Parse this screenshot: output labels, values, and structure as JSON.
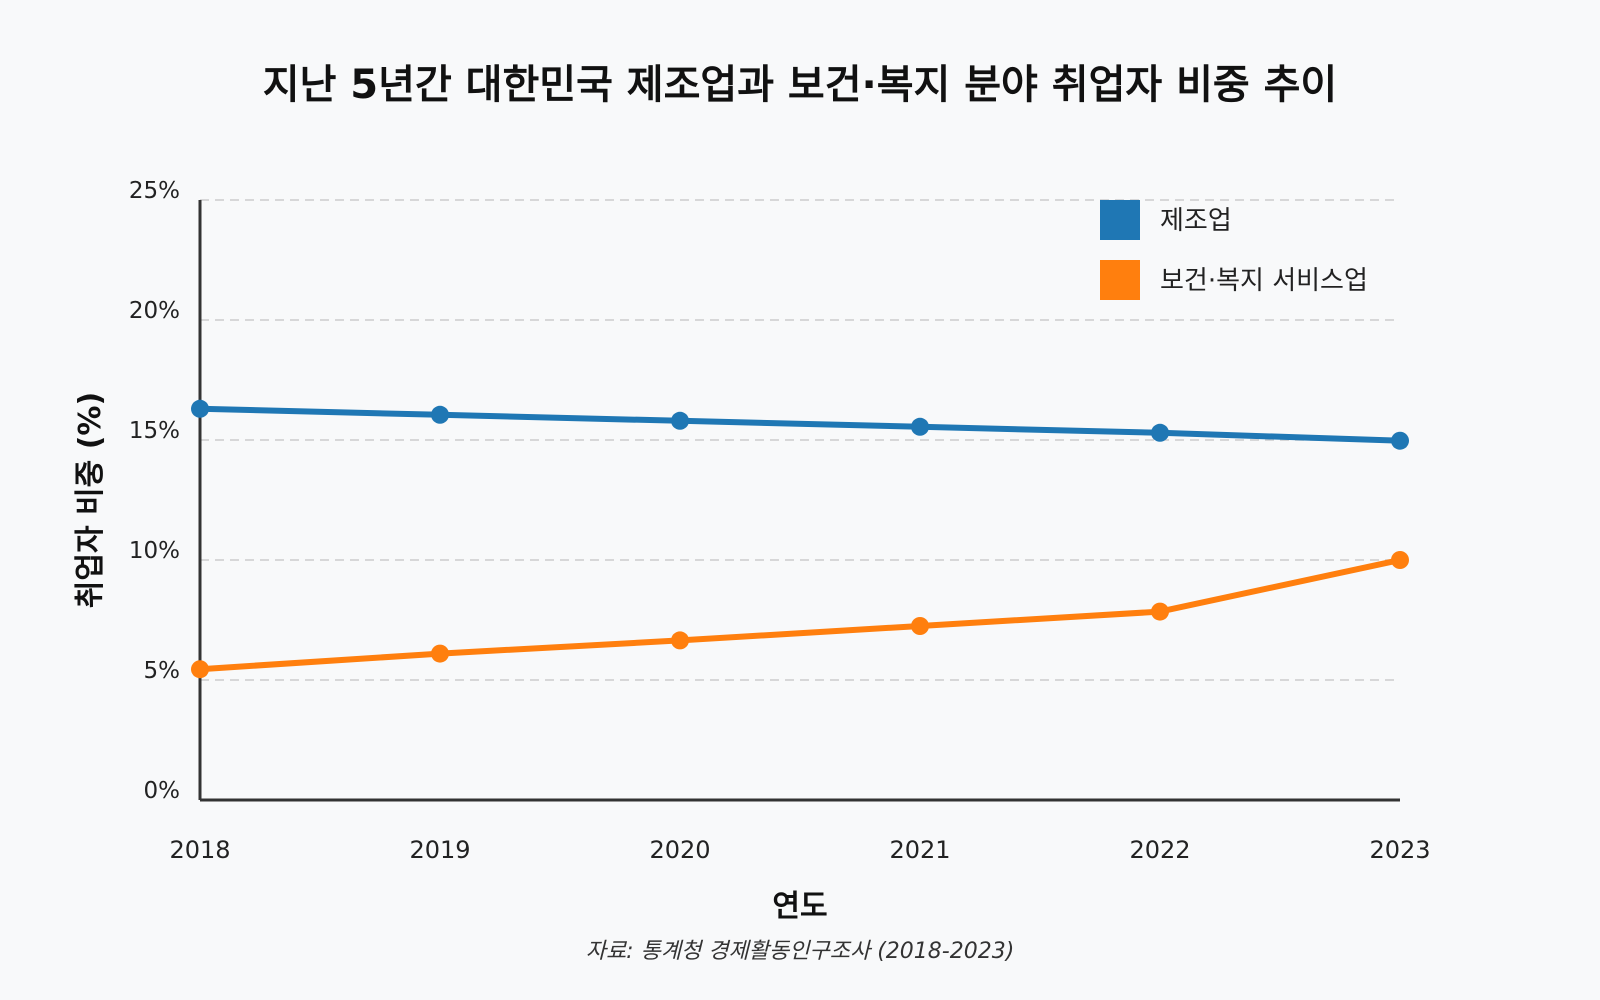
{
  "chart_data": {
    "type": "line",
    "title": "지난 5년간 대한민국 제조업과 보건·복지 분야 취업자 비중 추이",
    "xlabel": "연도",
    "ylabel": "취업자 비중 (%)",
    "categories": [
      "2018",
      "2019",
      "2020",
      "2021",
      "2022",
      "2023"
    ],
    "ylim": [
      0,
      25
    ],
    "yticks": [
      0,
      5,
      10,
      15,
      20,
      25
    ],
    "ytick_labels": [
      "0%",
      "5%",
      "10%",
      "15%",
      "20%",
      "25%"
    ],
    "grid": true,
    "legend_position": "top-right",
    "series": [
      {
        "name": "제조업",
        "color": "#1f77b4",
        "values": [
          16.3,
          16.05,
          15.8,
          15.55,
          15.3,
          14.97
        ]
      },
      {
        "name": "보건·복지 서비스업",
        "color": "#ff7f0e",
        "values": [
          5.45,
          6.1,
          6.65,
          7.25,
          7.85,
          10.0
        ]
      }
    ],
    "source": "자료: 통계청 경제활동인구조사 (2018-2023)"
  }
}
